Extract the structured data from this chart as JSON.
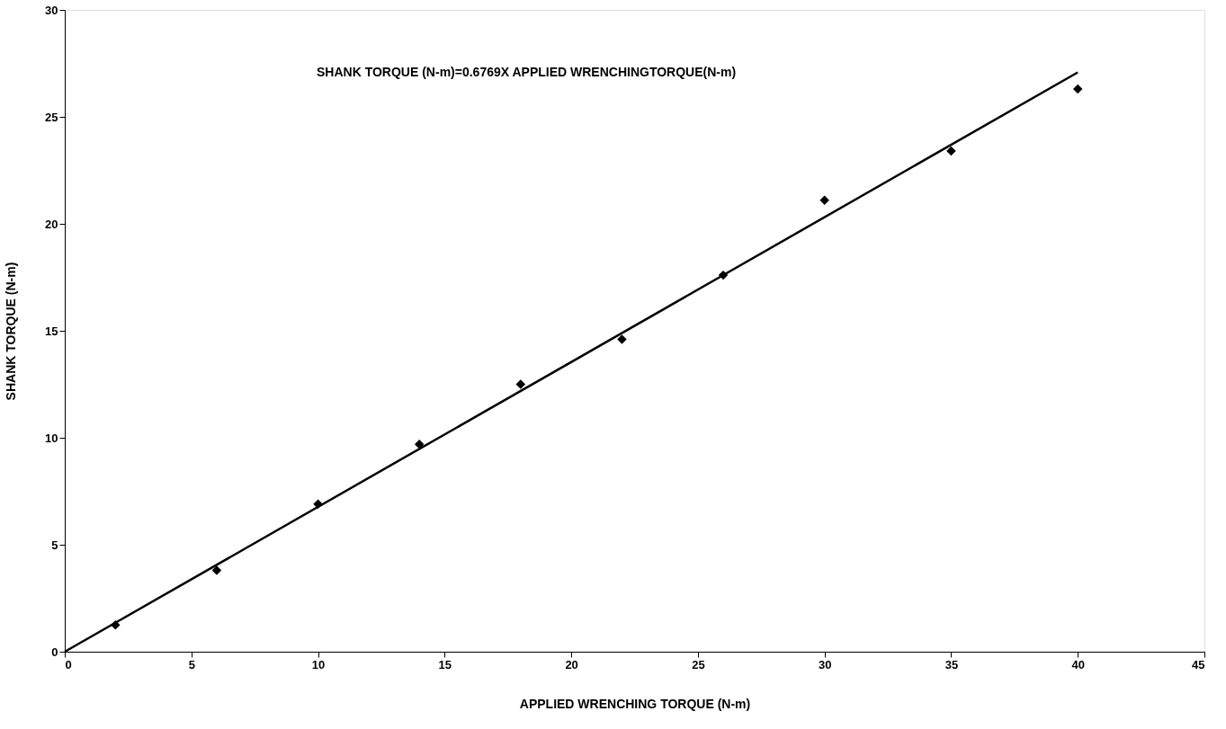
{
  "chart_data": {
    "type": "scatter",
    "xlabel": "APPLIED WRENCHING TORQUE (N-m)",
    "ylabel": "SHANK TORQUE (N-m)",
    "annotations": [
      "SHANK TORQUE (N-m)=0.6769X APPLIED WRENCHINGTORQUE(N-m)"
    ],
    "xlim": [
      0,
      45
    ],
    "xticks": [
      0,
      5,
      10,
      15,
      20,
      25,
      30,
      35,
      40,
      45
    ],
    "ylim": [
      0,
      30
    ],
    "yticks": [
      0,
      5,
      10,
      15,
      20,
      25,
      30
    ],
    "grid": false,
    "series": [
      {
        "color": "#000000",
        "marker": "diamond",
        "x": [
          2,
          6,
          10,
          14,
          18,
          22,
          26,
          30,
          35,
          40
        ],
        "values": [
          1.25,
          3.8,
          6.9,
          9.7,
          12.5,
          14.6,
          17.6,
          21.1,
          23.4,
          26.3
        ]
      },
      {
        "type": "line",
        "color": "#000000",
        "line_style": "solid",
        "x": [
          0,
          40
        ],
        "values": [
          0,
          27.08
        ]
      }
    ]
  }
}
